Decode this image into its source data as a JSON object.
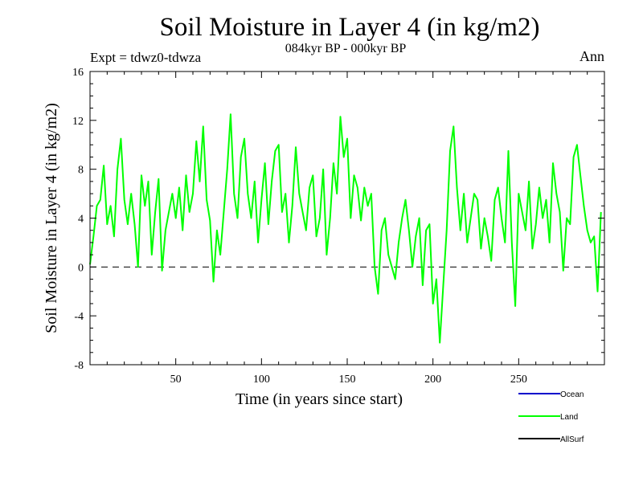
{
  "header": {
    "title": "Soil Moisture in Layer 4 (in kg/m2)",
    "subtitle": "084kyr BP - 000kyr BP",
    "experiment": "Expt = tdwz0-tdwza",
    "period": "Ann"
  },
  "chart_data": {
    "type": "line",
    "title": "Soil Moisture in Layer 4 (in kg/m2)",
    "xlabel": "Time (in years since start)",
    "ylabel": "Soil Moisture in Layer 4 (in kg/m2)",
    "xlim": [
      0,
      300
    ],
    "ylim": [
      -8,
      16
    ],
    "xticks": [
      50,
      100,
      150,
      200,
      250
    ],
    "yticks": [
      -8,
      -4,
      0,
      4,
      8,
      12,
      16
    ],
    "reference_line": {
      "y": 0,
      "style": "dashed"
    },
    "legend": [
      {
        "name": "Ocean",
        "color": "#0000cc"
      },
      {
        "name": "Land",
        "color": "#00ff00"
      },
      {
        "name": "AllSurf",
        "color": "#000000"
      }
    ],
    "legend_placement": "bottom-right",
    "series": [
      {
        "name": "Land",
        "color": "#00ff00",
        "x": [
          0,
          2,
          4,
          6,
          8,
          10,
          12,
          14,
          16,
          18,
          20,
          22,
          24,
          26,
          28,
          30,
          32,
          34,
          36,
          38,
          40,
          42,
          44,
          46,
          48,
          50,
          52,
          54,
          56,
          58,
          60,
          62,
          64,
          66,
          68,
          70,
          72,
          74,
          76,
          78,
          80,
          82,
          84,
          86,
          88,
          90,
          92,
          94,
          96,
          98,
          100,
          102,
          104,
          106,
          108,
          110,
          112,
          114,
          116,
          118,
          120,
          122,
          124,
          126,
          128,
          130,
          132,
          134,
          136,
          138,
          140,
          142,
          144,
          146,
          148,
          150,
          152,
          154,
          156,
          158,
          160,
          162,
          164,
          166,
          168,
          170,
          172,
          174,
          176,
          178,
          180,
          182,
          184,
          186,
          188,
          190,
          192,
          194,
          196,
          198,
          200,
          202,
          204,
          206,
          208,
          210,
          212,
          214,
          216,
          218,
          220,
          222,
          224,
          226,
          228,
          230,
          232,
          234,
          236,
          238,
          240,
          242,
          244,
          246,
          248,
          250,
          252,
          254,
          256,
          258,
          260,
          262,
          264,
          266,
          268,
          270,
          272,
          274,
          276,
          278,
          280,
          282,
          284,
          286,
          288,
          290,
          292,
          294,
          296,
          298
        ],
        "values": [
          0.2,
          2.5,
          5.0,
          5.5,
          8.3,
          3.5,
          5.0,
          2.5,
          8.0,
          10.5,
          5.5,
          3.5,
          6.0,
          3.5,
          0.0,
          7.5,
          5.0,
          7.0,
          1.0,
          4.5,
          7.2,
          -0.3,
          3.0,
          4.5,
          6.0,
          4.0,
          6.5,
          3.0,
          7.5,
          4.5,
          6.0,
          10.3,
          7.0,
          11.5,
          5.5,
          3.8,
          -1.2,
          3.0,
          1.0,
          4.5,
          8.0,
          12.5,
          6.0,
          4.0,
          9.0,
          10.5,
          6.0,
          4.0,
          7.0,
          2.0,
          5.5,
          8.5,
          3.5,
          7.0,
          9.5,
          10.0,
          4.5,
          6.0,
          2.0,
          5.0,
          9.8,
          6.0,
          4.5,
          3.0,
          6.5,
          7.5,
          2.5,
          4.0,
          8.0,
          1.0,
          4.0,
          8.5,
          6.0,
          12.3,
          9.0,
          10.5,
          4.0,
          7.5,
          6.5,
          3.8,
          6.5,
          5.0,
          6.0,
          0.0,
          -2.2,
          3.0,
          4.0,
          1.0,
          0.0,
          -1.0,
          2.0,
          4.0,
          5.5,
          3.0,
          0.0,
          2.5,
          4.0,
          -1.5,
          3.0,
          3.5,
          -3.0,
          -1.0,
          -6.2,
          -1.5,
          3.0,
          9.5,
          11.5,
          6.5,
          3.0,
          6.0,
          2.0,
          4.0,
          6.0,
          5.5,
          1.5,
          4.0,
          2.5,
          0.5,
          5.5,
          6.5,
          4.0,
          2.0,
          9.5,
          2.0,
          -3.2,
          6.0,
          4.5,
          3.0,
          7.0,
          1.5,
          3.5,
          6.5,
          4.0,
          5.5,
          2.0,
          8.5,
          6.0,
          4.5,
          -0.3,
          4.0,
          3.5,
          9.0,
          10.0,
          7.5,
          5.0,
          3.0,
          2.0,
          2.5,
          -2.0,
          4.5
        ]
      }
    ]
  }
}
